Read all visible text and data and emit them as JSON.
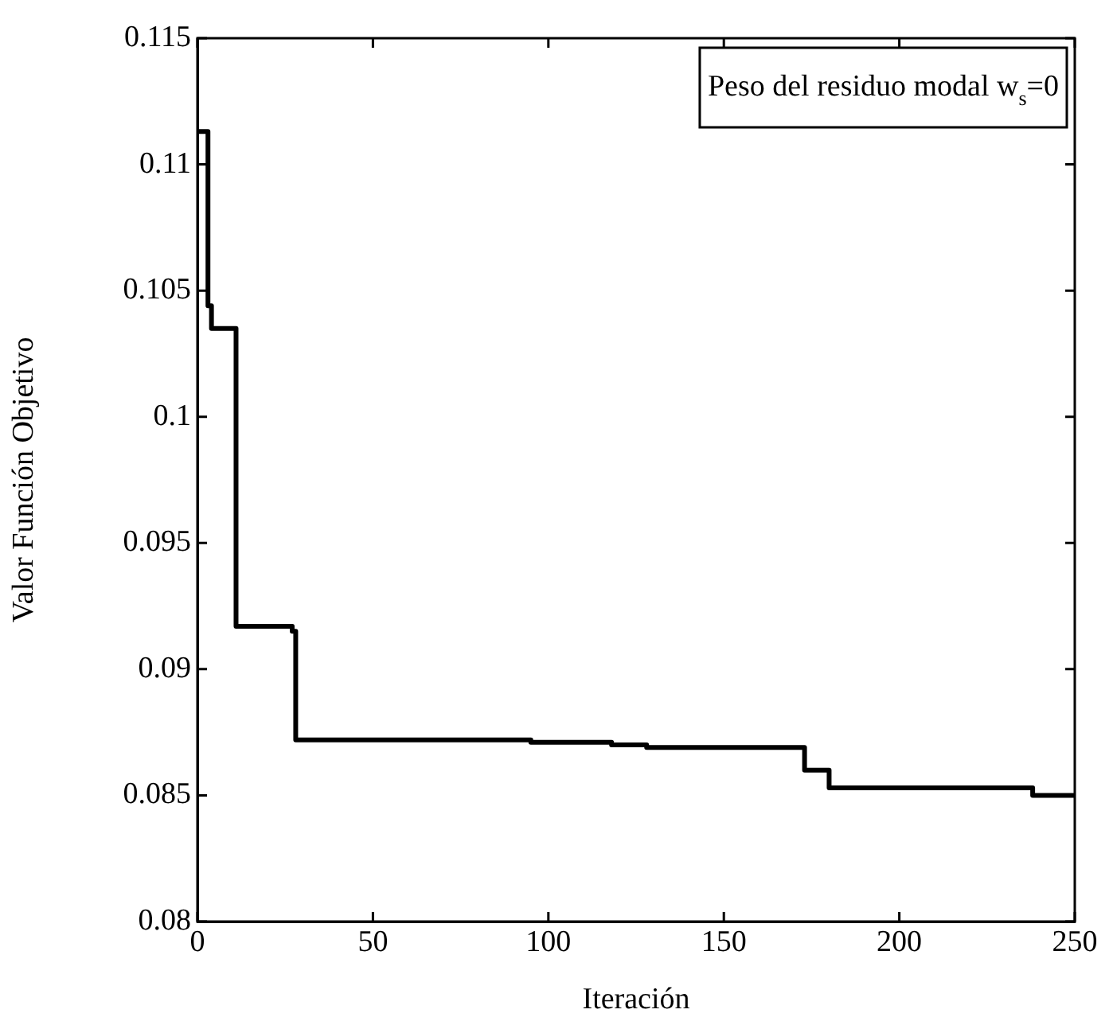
{
  "chart_data": {
    "type": "step",
    "xlabel": "Iteración",
    "ylabel": "Valor Función Objetivo",
    "annotations": [
      "Peso del residuo modal w$_{s}$=0"
    ],
    "x": [
      0,
      3,
      4,
      11,
      27,
      28,
      95,
      118,
      128,
      173,
      180,
      238,
      250
    ],
    "series": [
      {
        "color": "#000000",
        "values": [
          0.1113,
          0.1044,
          0.1035,
          0.0917,
          0.0915,
          0.0872,
          0.0871,
          0.087,
          0.0869,
          0.086,
          0.0853,
          0.085,
          0.085
        ]
      }
    ],
    "xlim": [
      0,
      250
    ],
    "xticks": [
      0,
      50,
      100,
      150,
      200,
      250
    ],
    "ylim": [
      0.08,
      0.115
    ],
    "yticks": [
      0.08,
      0.085,
      0.09,
      0.095,
      0.1,
      0.105,
      0.11,
      0.115
    ],
    "grid": false,
    "legend": false,
    "marker": "none",
    "line_style": "solid"
  }
}
